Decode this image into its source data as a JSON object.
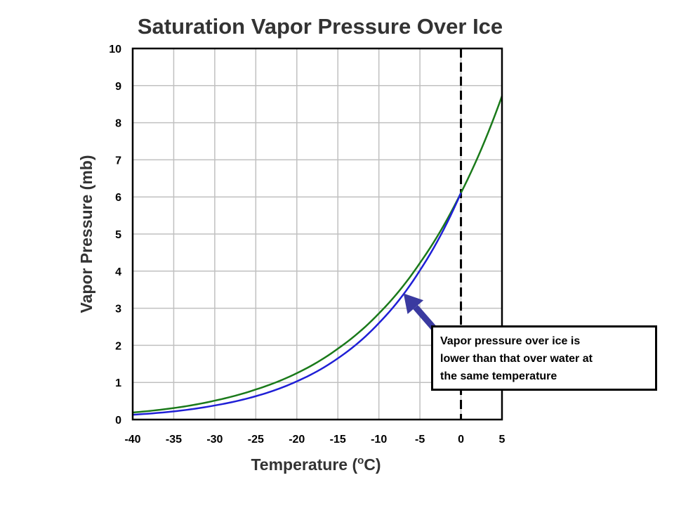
{
  "colors": {
    "ice_curve": "#1f1fd6",
    "water_curve": "#1a7a1a",
    "arrow": "#3a3aa0",
    "grid": "#c0c0c0",
    "axis": "#000000"
  },
  "chart_data": {
    "type": "line",
    "title": "Saturation Vapor Pressure Over Ice",
    "xlabel": "Temperature (",
    "xlabel_sup": "o",
    "xlabel_tail": "C)",
    "ylabel": "Vapor Pressure (mb)",
    "xlim": [
      -40,
      5
    ],
    "ylim": [
      0,
      10
    ],
    "x_ticks": [
      -40,
      -35,
      -30,
      -25,
      -20,
      -15,
      -10,
      -5,
      0,
      5
    ],
    "y_ticks": [
      0,
      1,
      2,
      3,
      4,
      5,
      6,
      7,
      8,
      9,
      10
    ],
    "grid": true,
    "vertical_reference_line": {
      "x": 0,
      "style": "dashed"
    },
    "series": [
      {
        "curve": "water",
        "color": "#1a7a1a",
        "x": [
          -40,
          -35,
          -30,
          -25,
          -20,
          -15,
          -10,
          -5,
          0,
          5
        ],
        "y": [
          0.19,
          0.31,
          0.51,
          0.81,
          1.25,
          1.91,
          2.86,
          4.22,
          6.11,
          8.72
        ]
      },
      {
        "curve": "ice",
        "color": "#1f1fd6",
        "x": [
          -40,
          -35,
          -30,
          -25,
          -20,
          -15,
          -10,
          -5,
          0
        ],
        "y": [
          0.13,
          0.22,
          0.38,
          0.63,
          1.03,
          1.65,
          2.6,
          4.02,
          6.11
        ]
      }
    ],
    "annotations": [
      {
        "text_lines": [
          "Vapor pressure over ice is",
          "lower than that over water at",
          "the same temperature"
        ],
        "arrow_points_to": {
          "x": -7,
          "y": 3.4
        }
      }
    ]
  }
}
